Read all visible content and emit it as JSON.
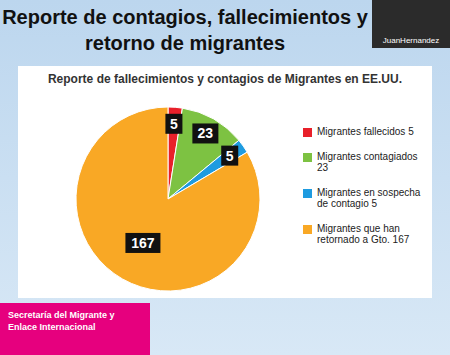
{
  "chart_data": {
    "type": "pie",
    "title": "Reporte de contagios, fallecimientos y retorno de migrantes",
    "subtitle": "Reporte de fallecimientos y contagios de Migrantes en EE.UU.",
    "annotations": [
      "JuanHernandez",
      "Secretaría del Migrante y Enlace Internacional"
    ],
    "categories": [
      "Migrantes fallecidos 5",
      "Migrantes contagiados 23",
      "Migrantes en sospecha de contagio 5",
      "Migrantes que han retornado a Gto. 167"
    ],
    "values": [
      5,
      23,
      5,
      167
    ],
    "colors": [
      "#e8202a",
      "#7dc242",
      "#1e9be0",
      "#f9a825"
    ],
    "data_labels": true,
    "legend": "right"
  }
}
